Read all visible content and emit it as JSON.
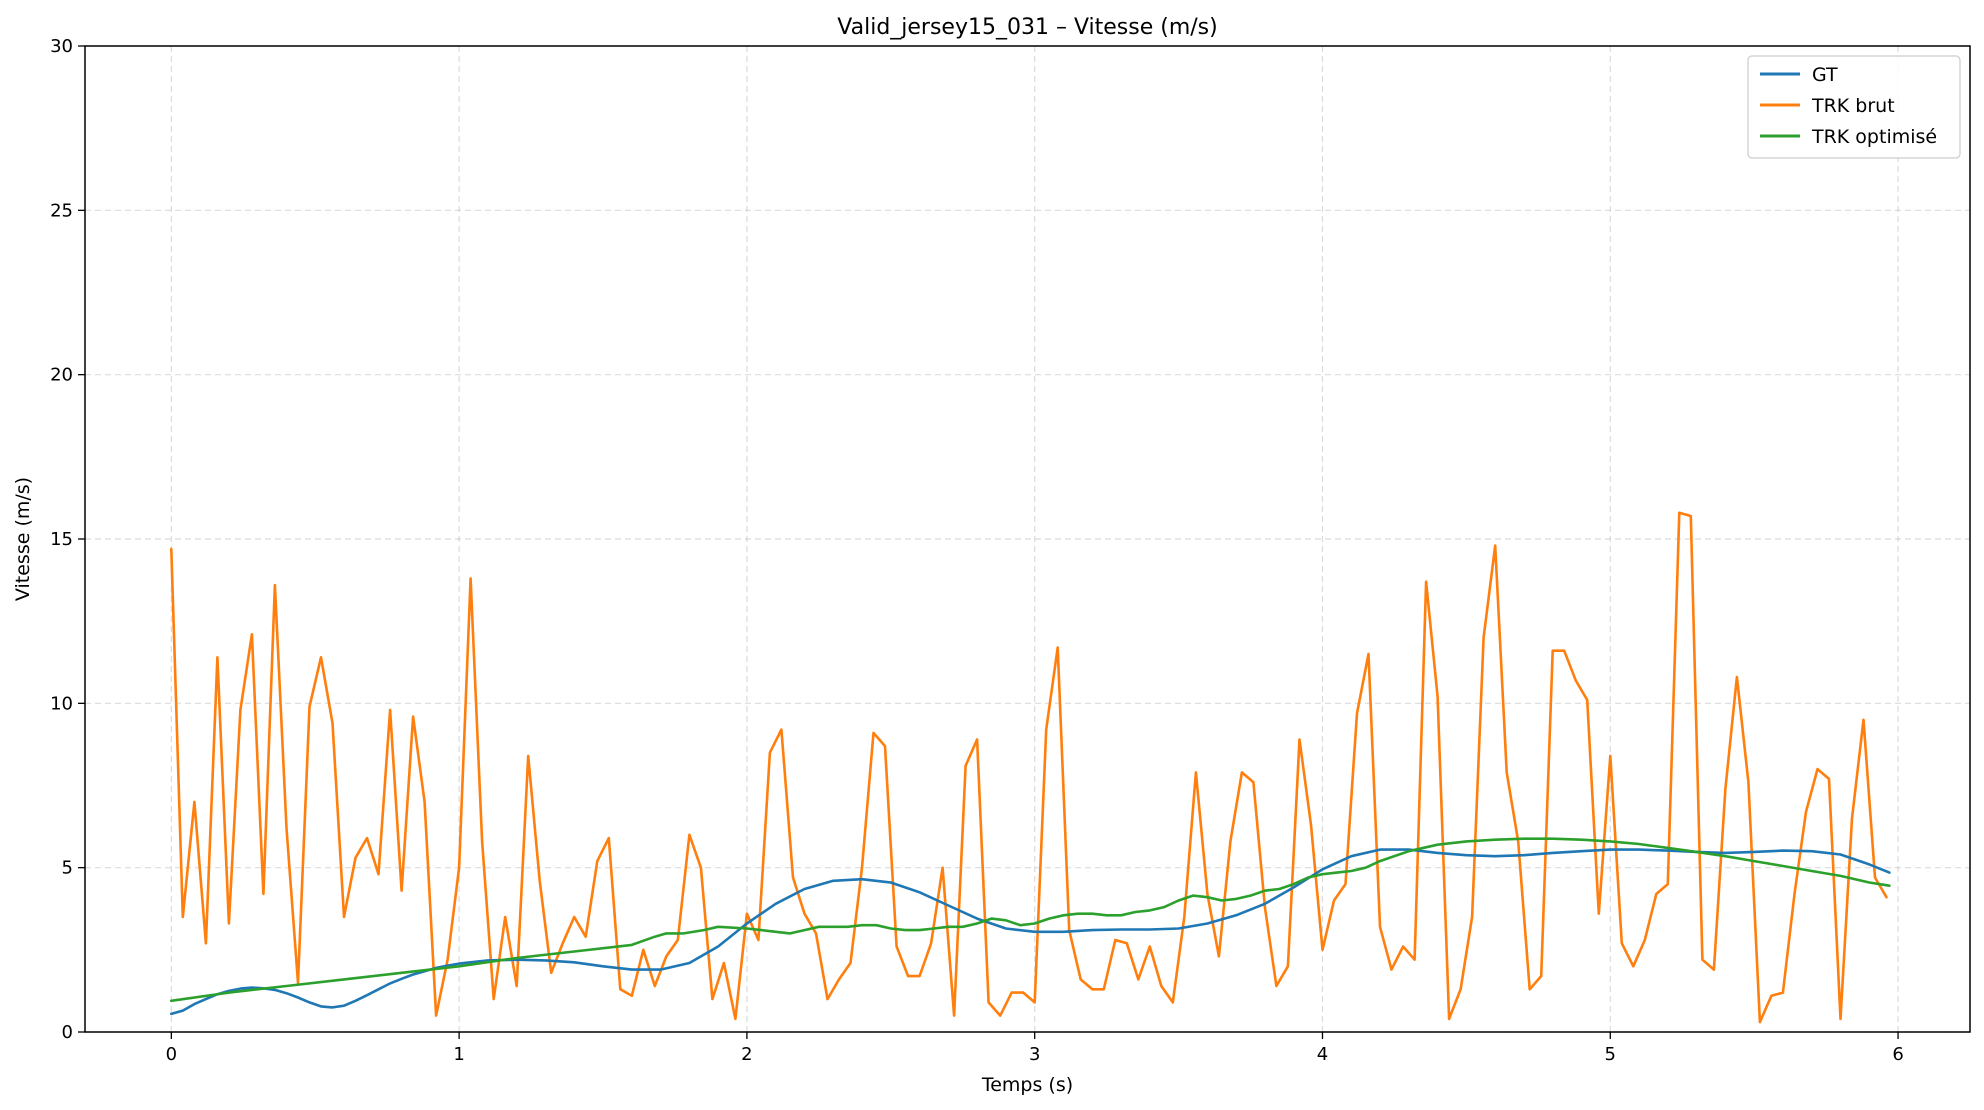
{
  "chart_data": {
    "type": "line",
    "title": "Valid_jersey15_031 – Vitesse (m/s)",
    "xlabel": "Temps (s)",
    "ylabel": "Vitesse (m/s)",
    "xlim": [
      -0.3,
      6.25
    ],
    "ylim": [
      0,
      30
    ],
    "xticks": [
      0,
      1,
      2,
      3,
      4,
      5,
      6
    ],
    "yticks": [
      0,
      5,
      10,
      15,
      20,
      25,
      30
    ],
    "grid": true,
    "legend_position": "top-right",
    "series": [
      {
        "name": "GT",
        "color": "#1f77b4",
        "x": [
          0,
          0.04,
          0.08,
          0.12,
          0.16,
          0.2,
          0.24,
          0.28,
          0.32,
          0.36,
          0.4,
          0.44,
          0.48,
          0.52,
          0.56,
          0.6,
          0.64,
          0.68,
          0.72,
          0.76,
          0.8,
          0.84,
          0.88,
          0.92,
          0.96,
          1.0,
          1.1,
          1.2,
          1.3,
          1.4,
          1.5,
          1.6,
          1.7,
          1.8,
          1.9,
          2.0,
          2.1,
          2.2,
          2.3,
          2.4,
          2.5,
          2.6,
          2.7,
          2.8,
          2.9,
          3.0,
          3.1,
          3.2,
          3.3,
          3.4,
          3.5,
          3.6,
          3.7,
          3.8,
          3.9,
          4.0,
          4.1,
          4.2,
          4.3,
          4.4,
          4.5,
          4.6,
          4.7,
          4.8,
          4.9,
          5.0,
          5.1,
          5.2,
          5.3,
          5.4,
          5.5,
          5.6,
          5.7,
          5.8,
          5.9,
          5.97
        ],
        "values": [
          0.55,
          0.65,
          0.85,
          1.0,
          1.15,
          1.25,
          1.32,
          1.35,
          1.33,
          1.28,
          1.18,
          1.05,
          0.9,
          0.78,
          0.75,
          0.8,
          0.95,
          1.12,
          1.3,
          1.48,
          1.62,
          1.75,
          1.85,
          1.95,
          2.02,
          2.08,
          2.18,
          2.2,
          2.18,
          2.12,
          2.0,
          1.9,
          1.9,
          2.1,
          2.6,
          3.3,
          3.9,
          4.35,
          4.6,
          4.65,
          4.55,
          4.25,
          3.85,
          3.45,
          3.15,
          3.05,
          3.05,
          3.1,
          3.12,
          3.12,
          3.15,
          3.3,
          3.55,
          3.9,
          4.4,
          4.95,
          5.35,
          5.55,
          5.55,
          5.45,
          5.38,
          5.35,
          5.38,
          5.45,
          5.5,
          5.55,
          5.55,
          5.52,
          5.48,
          5.45,
          5.48,
          5.52,
          5.5,
          5.4,
          5.1,
          4.85
        ]
      },
      {
        "name": "TRK brut",
        "color": "#ff7f0e",
        "x": [
          0,
          0.04,
          0.08,
          0.12,
          0.16,
          0.2,
          0.24,
          0.28,
          0.32,
          0.36,
          0.4,
          0.44,
          0.48,
          0.52,
          0.56,
          0.6,
          0.64,
          0.68,
          0.72,
          0.76,
          0.8,
          0.84,
          0.88,
          0.92,
          0.96,
          1.0,
          1.04,
          1.08,
          1.12,
          1.16,
          1.2,
          1.24,
          1.28,
          1.32,
          1.36,
          1.4,
          1.44,
          1.48,
          1.52,
          1.56,
          1.6,
          1.64,
          1.68,
          1.72,
          1.76,
          1.8,
          1.84,
          1.88,
          1.92,
          1.96,
          2.0,
          2.04,
          2.08,
          2.12,
          2.16,
          2.2,
          2.24,
          2.28,
          2.32,
          2.36,
          2.4,
          2.44,
          2.48,
          2.52,
          2.56,
          2.6,
          2.64,
          2.68,
          2.72,
          2.76,
          2.8,
          2.84,
          2.88,
          2.92,
          2.96,
          3.0,
          3.04,
          3.08,
          3.12,
          3.16,
          3.2,
          3.24,
          3.28,
          3.32,
          3.36,
          3.4,
          3.44,
          3.48,
          3.52,
          3.56,
          3.6,
          3.64,
          3.68,
          3.72,
          3.76,
          3.8,
          3.84,
          3.88,
          3.92,
          3.96,
          4.0,
          4.04,
          4.08,
          4.12,
          4.16,
          4.2,
          4.24,
          4.28,
          4.32,
          4.36,
          4.4,
          4.44,
          4.48,
          4.52,
          4.56,
          4.6,
          4.64,
          4.68,
          4.72,
          4.76,
          4.8,
          4.84,
          4.88,
          4.92,
          4.96,
          5.0,
          5.04,
          5.08,
          5.12,
          5.16,
          5.2,
          5.24,
          5.28,
          5.32,
          5.36,
          5.4,
          5.44,
          5.48,
          5.52,
          5.56,
          5.6,
          5.64,
          5.68,
          5.72,
          5.76,
          5.8,
          5.84,
          5.88,
          5.92,
          5.96
        ],
        "values": [
          14.7,
          3.5,
          7.0,
          2.7,
          11.4,
          3.3,
          9.8,
          12.1,
          4.2,
          13.6,
          6.2,
          1.5,
          9.9,
          11.4,
          9.4,
          3.5,
          5.3,
          5.9,
          4.8,
          9.8,
          4.3,
          9.6,
          7.0,
          0.5,
          2.2,
          5.0,
          13.8,
          5.8,
          1.0,
          3.5,
          1.4,
          8.4,
          4.6,
          1.8,
          2.7,
          3.5,
          2.9,
          5.2,
          5.9,
          1.3,
          1.1,
          2.5,
          1.4,
          2.3,
          2.8,
          6.0,
          5.0,
          1.0,
          2.1,
          0.4,
          3.6,
          2.8,
          8.5,
          9.2,
          4.7,
          3.6,
          3.0,
          1.0,
          1.6,
          2.1,
          5.0,
          9.1,
          8.7,
          2.6,
          1.7,
          1.7,
          2.7,
          5.0,
          0.5,
          8.1,
          8.9,
          0.9,
          0.5,
          1.2,
          1.2,
          0.9,
          9.2,
          11.7,
          3.1,
          1.6,
          1.3,
          1.3,
          2.8,
          2.7,
          1.6,
          2.6,
          1.4,
          0.9,
          3.5,
          7.9,
          4.2,
          2.3,
          5.8,
          7.9,
          7.6,
          3.8,
          1.4,
          2.0,
          8.9,
          6.3,
          2.5,
          4.0,
          4.5,
          9.7,
          11.5,
          3.2,
          1.9,
          2.6,
          2.2,
          13.7,
          10.2,
          0.4,
          1.3,
          3.5,
          12.0,
          14.8,
          7.9,
          5.8,
          1.3,
          1.7,
          11.6,
          11.6,
          10.7,
          10.1,
          3.6,
          8.4,
          2.7,
          2.0,
          2.8,
          4.2,
          4.5,
          15.8,
          15.7,
          2.2,
          1.9,
          7.4,
          10.8,
          7.6,
          0.3,
          1.1,
          1.2,
          4.2,
          6.7,
          8.0,
          7.7,
          0.4,
          6.5,
          9.5,
          4.7,
          4.1
        ]
      },
      {
        "name": "TRK optimisé",
        "color": "#2ca02c",
        "x": [
          0,
          0.2,
          0.4,
          0.6,
          0.8,
          1.0,
          1.2,
          1.4,
          1.6,
          1.68,
          1.72,
          1.78,
          1.85,
          1.9,
          2.0,
          2.05,
          2.1,
          2.15,
          2.2,
          2.25,
          2.3,
          2.35,
          2.4,
          2.45,
          2.5,
          2.55,
          2.6,
          2.65,
          2.7,
          2.75,
          2.8,
          2.85,
          2.9,
          2.95,
          3.0,
          3.05,
          3.1,
          3.15,
          3.2,
          3.25,
          3.3,
          3.35,
          3.4,
          3.45,
          3.5,
          3.55,
          3.6,
          3.65,
          3.7,
          3.75,
          3.8,
          3.85,
          3.9,
          3.95,
          4.0,
          4.05,
          4.1,
          4.15,
          4.2,
          4.3,
          4.4,
          4.5,
          4.6,
          4.7,
          4.8,
          4.9,
          5.0,
          5.1,
          5.2,
          5.3,
          5.4,
          5.5,
          5.6,
          5.7,
          5.8,
          5.9,
          5.97
        ],
        "values": [
          0.95,
          1.2,
          1.4,
          1.6,
          1.8,
          2.0,
          2.25,
          2.45,
          2.65,
          2.9,
          3.0,
          3.0,
          3.1,
          3.2,
          3.15,
          3.1,
          3.05,
          3.0,
          3.1,
          3.2,
          3.2,
          3.2,
          3.25,
          3.25,
          3.15,
          3.1,
          3.1,
          3.15,
          3.2,
          3.2,
          3.3,
          3.45,
          3.4,
          3.25,
          3.3,
          3.45,
          3.55,
          3.6,
          3.6,
          3.55,
          3.55,
          3.65,
          3.7,
          3.8,
          4.0,
          4.15,
          4.1,
          4.0,
          4.05,
          4.15,
          4.3,
          4.35,
          4.5,
          4.7,
          4.8,
          4.85,
          4.9,
          5.0,
          5.2,
          5.5,
          5.7,
          5.8,
          5.85,
          5.88,
          5.88,
          5.85,
          5.8,
          5.72,
          5.6,
          5.48,
          5.35,
          5.2,
          5.05,
          4.9,
          4.75,
          4.55,
          4.45
        ]
      }
    ]
  }
}
